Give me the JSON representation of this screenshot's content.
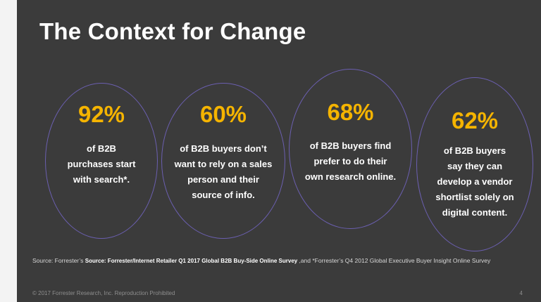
{
  "slide": {
    "title": "The Context for Change",
    "stats": [
      {
        "percent": "92%",
        "lines": [
          "of B2B",
          "purchases start",
          "with search*."
        ]
      },
      {
        "percent": "60%",
        "lines": [
          "of B2B buyers don’t",
          "want to rely on a sales",
          "person and their",
          "source of info."
        ]
      },
      {
        "percent": "68%",
        "lines": [
          "of B2B buyers find",
          "prefer to do their",
          "own research online."
        ]
      },
      {
        "percent": "62%",
        "lines": [
          "of B2B buyers",
          "say they can",
          "develop a vendor",
          "shortlist solely on",
          "digital content."
        ]
      }
    ],
    "source": {
      "prefix": "Source:  Forrester’s ",
      "bold": "Source: Forrester/Internet Retailer Q1 2017 Global B2B Buy-Side Online Survey ",
      "suffix": ",and  *Forrester’s  Q4  2012  Global  Executive  Buyer  Insight  Online  Survey"
    },
    "footer": "© 2017 Forrester Research, Inc. Reproduction Prohibited",
    "page_number": "4"
  },
  "colors": {
    "background": "#3b3b3b",
    "accent": "#f5b400",
    "ellipse_border": "#6b5fb0",
    "text": "#ffffff"
  }
}
